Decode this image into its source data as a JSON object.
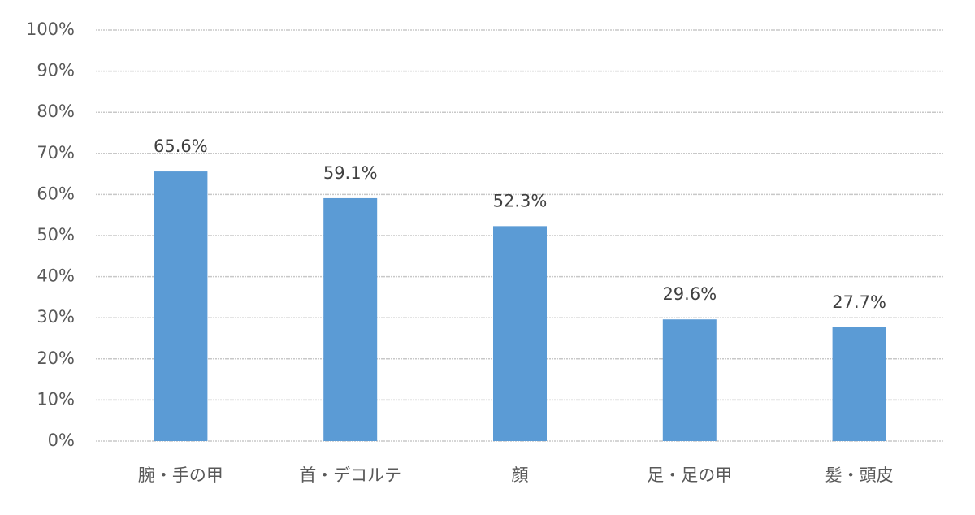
{
  "chart_data": {
    "type": "bar",
    "categories": [
      "腕・手の甲",
      "首・デコルテ",
      "顔",
      "足・足の甲",
      "髪・頭皮"
    ],
    "values": [
      65.6,
      59.1,
      52.3,
      29.6,
      27.7
    ],
    "value_labels": [
      "65.6%",
      "59.1%",
      "52.3%",
      "29.6%",
      "27.7%"
    ],
    "color": "#5b9bd5",
    "ylim": [
      0,
      100
    ],
    "yticks": [
      {
        "value": 0,
        "label": "0%"
      },
      {
        "value": 10,
        "label": "10%"
      },
      {
        "value": 20,
        "label": "20%"
      },
      {
        "value": 30,
        "label": "30%"
      },
      {
        "value": 40,
        "label": "40%"
      },
      {
        "value": 50,
        "label": "50%"
      },
      {
        "value": 60,
        "label": "60%"
      },
      {
        "value": 70,
        "label": "70%"
      },
      {
        "value": 80,
        "label": "80%"
      },
      {
        "value": 90,
        "label": "90%"
      },
      {
        "value": 100,
        "label": "100%"
      }
    ],
    "grid": true
  }
}
